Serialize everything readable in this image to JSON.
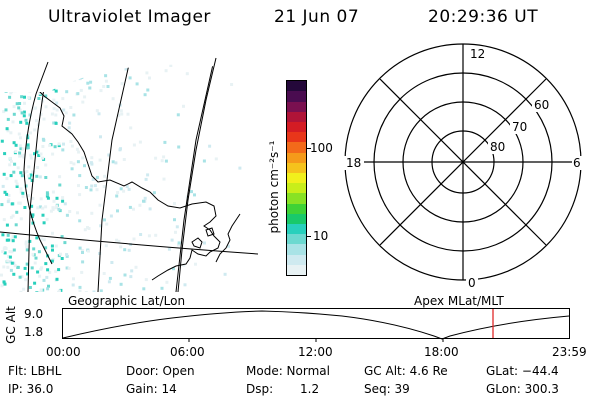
{
  "header": {
    "instrument": "Ultraviolet Imager",
    "date": "21 Jun 07",
    "time": "20:29:36 UT"
  },
  "colorbar": {
    "label": "photon cm⁻²s⁻¹",
    "ticks": [
      "100",
      "10"
    ],
    "colors": [
      "#e8f2f4",
      "#cfeaf0",
      "#a9e3e6",
      "#6cd9d0",
      "#28d0bc",
      "#19c96a",
      "#3fd236",
      "#88e224",
      "#c8ee1a",
      "#f1f01c",
      "#f5c31c",
      "#f59a1a",
      "#f36a1a",
      "#e8361a",
      "#d41c24",
      "#b01438",
      "#7a1050",
      "#4a0c50",
      "#24083a"
    ]
  },
  "polar": {
    "mlt_labels": {
      "top": "12",
      "left": "18",
      "right": "6",
      "bottom": "0"
    },
    "lat_labels": [
      "60",
      "70",
      "80"
    ]
  },
  "labels": {
    "left_caption": "Geographic Lat/Lon",
    "right_caption": "Apex MLat/MLT"
  },
  "timeline": {
    "axis_label": "GC Alt",
    "y_max": "9.0",
    "y_min": "1.8",
    "x_ticks": [
      "00:00",
      "06:00",
      "12:00",
      "18:00",
      "23:59"
    ],
    "marker_color": "#e0282a"
  },
  "footer": {
    "filter": "Flt: LBHL",
    "ip": "IP: 36.0",
    "door": "Door: Open",
    "gain": "Gain: 14",
    "mode": "Mode: Normal",
    "dsp_label": "Dsp:",
    "dsp_value": "1.2",
    "gc_alt": "GC Alt: 4.6 Re",
    "seq": "Seq: 39",
    "glat": "GLat: −44.4",
    "glon": "GLon: 300.3"
  }
}
